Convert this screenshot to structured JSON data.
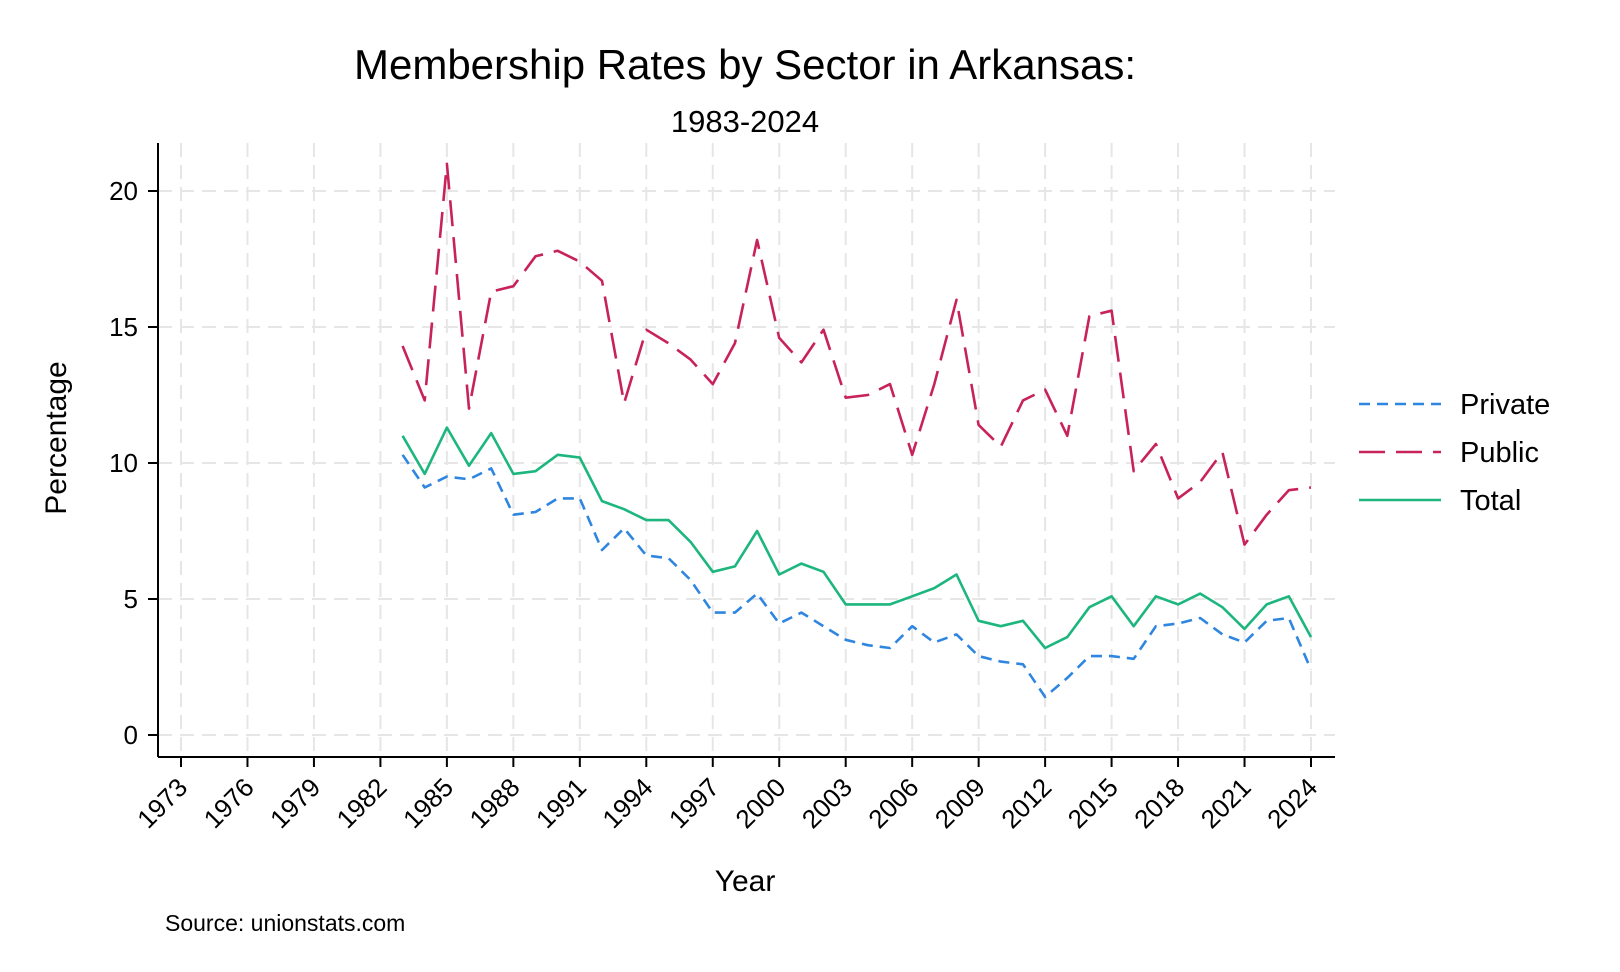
{
  "colors": {
    "private": "#2f86e0",
    "public": "#c8225c",
    "total": "#1db67e",
    "grid": "#e6e6e6"
  },
  "chart_data": {
    "type": "line",
    "title": "Membership Rates by Sector in Arkansas:",
    "subtitle": "1983-2024",
    "xlabel": "Year",
    "ylabel": "Percentage",
    "source": "Source: unionstats.com",
    "xlim": [
      1973,
      2024
    ],
    "ylim": [
      0,
      21
    ],
    "xticks": [
      1973,
      1976,
      1979,
      1982,
      1985,
      1988,
      1991,
      1994,
      1997,
      2000,
      2003,
      2006,
      2009,
      2012,
      2015,
      2018,
      2021,
      2024
    ],
    "yticks": [
      0,
      5,
      10,
      15,
      20
    ],
    "grid": true,
    "legend_position": "right",
    "x": [
      1983,
      1984,
      1985,
      1986,
      1987,
      1988,
      1989,
      1990,
      1991,
      1992,
      1993,
      1994,
      1995,
      1996,
      1997,
      1998,
      1999,
      2000,
      2001,
      2002,
      2003,
      2004,
      2005,
      2006,
      2007,
      2008,
      2009,
      2010,
      2011,
      2012,
      2013,
      2014,
      2015,
      2016,
      2017,
      2018,
      2019,
      2020,
      2021,
      2022,
      2023,
      2024
    ],
    "series": [
      {
        "name": "Private",
        "key": "private",
        "dash": "dash-short",
        "values": [
          10.3,
          9.1,
          9.5,
          9.4,
          9.8,
          8.1,
          8.2,
          8.7,
          8.7,
          6.8,
          7.6,
          6.6,
          6.5,
          5.7,
          4.5,
          4.5,
          5.2,
          4.1,
          4.5,
          4.0,
          3.5,
          3.3,
          3.2,
          4.0,
          3.4,
          3.7,
          2.9,
          2.7,
          2.6,
          1.4,
          2.1,
          2.9,
          2.9,
          2.8,
          4.0,
          4.1,
          4.3,
          3.7,
          3.4,
          4.2,
          4.3,
          2.4
        ]
      },
      {
        "name": "Public",
        "key": "public",
        "dash": "dash-long",
        "values": [
          14.3,
          12.3,
          21.0,
          12.0,
          16.3,
          16.5,
          17.6,
          17.8,
          17.4,
          16.7,
          12.2,
          14.9,
          14.4,
          13.8,
          12.9,
          14.4,
          18.2,
          14.6,
          13.7,
          14.9,
          12.4,
          12.5,
          12.9,
          10.3,
          12.9,
          16.0,
          11.4,
          10.6,
          12.3,
          12.7,
          11.0,
          15.4,
          15.6,
          9.7,
          10.7,
          8.7,
          9.3,
          10.4,
          7.0,
          8.1,
          9.0,
          9.1
        ]
      },
      {
        "name": "Total",
        "key": "total",
        "dash": "solid",
        "values": [
          11.0,
          9.6,
          11.3,
          9.9,
          11.1,
          9.6,
          9.7,
          10.3,
          10.2,
          8.6,
          8.3,
          7.9,
          7.9,
          7.1,
          6.0,
          6.2,
          7.5,
          5.9,
          6.3,
          6.0,
          4.8,
          4.8,
          4.8,
          5.1,
          5.4,
          5.9,
          4.2,
          4.0,
          4.2,
          3.2,
          3.6,
          4.7,
          5.1,
          4.0,
          5.1,
          4.8,
          5.2,
          4.7,
          3.9,
          4.8,
          5.1,
          3.6
        ]
      }
    ]
  }
}
